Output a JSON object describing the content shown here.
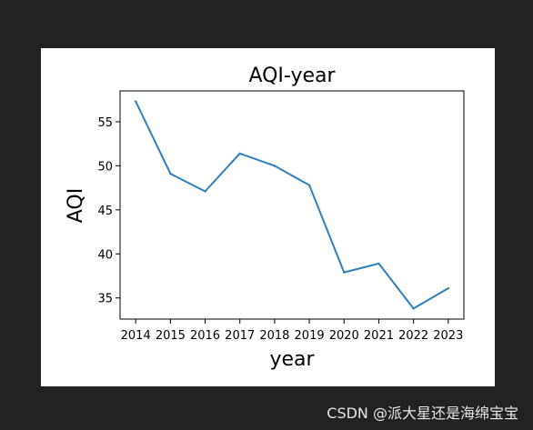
{
  "watermark": "CSDN @派大星还是海绵宝宝",
  "colors": {
    "page_bg": "#222222",
    "figure_bg": "#ffffff",
    "line": "#2f7fbf"
  },
  "chart_data": {
    "type": "line",
    "title": "AQI-year",
    "xlabel": "year",
    "ylabel": "AQI",
    "x": [
      2014,
      2015,
      2016,
      2017,
      2018,
      2019,
      2020,
      2021,
      2022,
      2023
    ],
    "series": [
      {
        "values": [
          57.3,
          49.1,
          47.1,
          51.4,
          50.0,
          47.8,
          37.9,
          38.9,
          33.8,
          36.1
        ]
      }
    ],
    "xticks": [
      "2014",
      "2015",
      "2016",
      "2017",
      "2018",
      "2019",
      "2020",
      "2021",
      "2022",
      "2023"
    ],
    "yticks": [
      "35",
      "40",
      "45",
      "50",
      "55"
    ],
    "xlim": [
      2013.55,
      2023.45
    ],
    "ylim": [
      32.6,
      58.5
    ],
    "grid": false
  }
}
